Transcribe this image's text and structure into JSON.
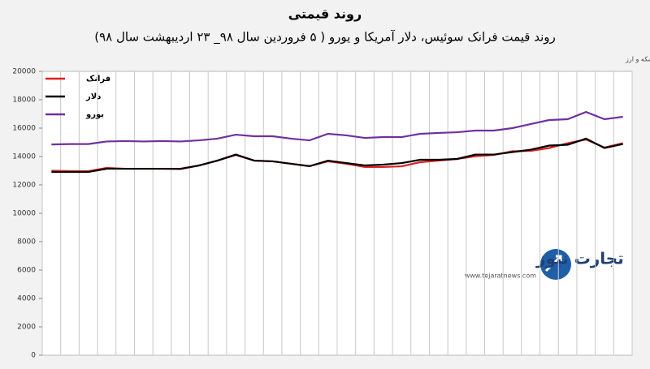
{
  "chart_data": {
    "type": "line",
    "title": "روند قیمتی",
    "subtitle": "روند قیمت فرانک سوئیس، دلار آمریکا و یورو ( ۵ فروردین سال ۹۸_ ۲۳ اردیبهشت سال ۹۸)",
    "source": "منبع: شبکه اطلاع‌رسانی طلا، سکه و ارز",
    "watermark": "تجارت نیوز",
    "watermark_url": "www.tejaratnews.com",
    "categories": [
      null,
      null,
      null,
      null,
      null,
      null,
      null,
      null,
      null,
      null,
      null,
      null,
      null,
      null,
      null,
      null,
      null,
      null,
      null,
      null,
      null,
      null,
      null,
      null,
      null,
      null,
      null,
      null,
      null,
      null,
      null,
      null
    ],
    "series": [
      {
        "name": "فرانک",
        "color": "#e02020",
        "values": [
          13000,
          12970,
          12970,
          13200,
          13140,
          13140,
          13140,
          13110,
          13370,
          13710,
          14110,
          13710,
          13660,
          13490,
          13320,
          13660,
          13490,
          13260,
          13260,
          13310,
          13600,
          13710,
          13830,
          14020,
          14110,
          14370,
          14400,
          14600,
          14940,
          15200,
          14630,
          14940
        ]
      },
      {
        "name": "دلار",
        "color": "#000000",
        "values": [
          12910,
          12910,
          12910,
          13140,
          13140,
          13140,
          13140,
          13140,
          13370,
          13710,
          14140,
          13710,
          13660,
          13490,
          13320,
          13710,
          13540,
          13370,
          13430,
          13540,
          13770,
          13770,
          13830,
          14140,
          14140,
          14310,
          14480,
          14770,
          14830,
          15260,
          14600,
          14880
        ]
      },
      {
        "name": "یورو",
        "color": "#7030a0",
        "values": [
          14850,
          14880,
          14880,
          15060,
          15090,
          15060,
          15090,
          15060,
          15140,
          15260,
          15540,
          15430,
          15430,
          15260,
          15140,
          15600,
          15490,
          15310,
          15370,
          15370,
          15600,
          15660,
          15710,
          15830,
          15830,
          16000,
          16290,
          16570,
          16630,
          17140,
          16630,
          16800
        ]
      }
    ],
    "ylim": [
      0,
      20000
    ],
    "yticks": [
      0,
      2000,
      4000,
      6000,
      8000,
      10000,
      12000,
      14000,
      16000,
      18000,
      20000
    ],
    "legend": "top-left"
  }
}
